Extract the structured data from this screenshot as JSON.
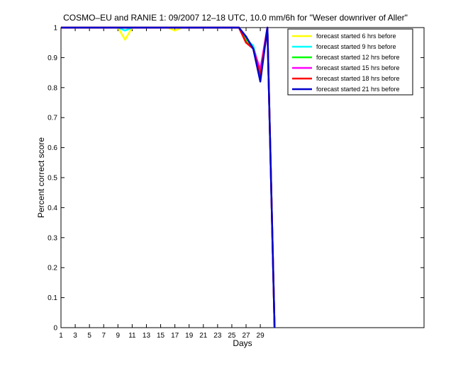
{
  "chart_data": {
    "type": "line",
    "title": "COSMO–EU and RANIE 1: 09/2007 12–18 UTC, 10.0 mm/6h for \"Weser downriver of Aller\"",
    "xlabel": "Days",
    "ylabel": "Percent correct score",
    "xlim": [
      1,
      52
    ],
    "ylim": [
      0,
      1
    ],
    "xticks": [
      1,
      3,
      5,
      7,
      9,
      11,
      13,
      15,
      17,
      19,
      21,
      23,
      25,
      27,
      29
    ],
    "yticks": [
      0,
      0.1,
      0.2,
      0.3,
      0.4,
      0.5,
      0.6,
      0.7,
      0.8,
      0.9,
      1
    ],
    "ytick_labels": [
      "0",
      "0.1",
      "0.2",
      "0.3",
      "0.4",
      "0.5",
      "0.6",
      "0.7",
      "0.8",
      "0.9",
      "1"
    ],
    "legend_position": "top-right",
    "grid": false,
    "series": [
      {
        "name": "forecast started 6 hrs before",
        "color": "#ffff00",
        "x": [
          1,
          2,
          3,
          4,
          5,
          6,
          7,
          8,
          9,
          10,
          11,
          12,
          13,
          14,
          15,
          16,
          17,
          18,
          19,
          20,
          21,
          22,
          23,
          24,
          25,
          26,
          27,
          28,
          29,
          30,
          31
        ],
        "y": [
          1,
          1,
          1,
          1,
          1,
          1,
          1,
          1,
          1,
          0.96,
          1,
          1,
          1,
          1,
          1,
          1,
          0.99,
          1,
          1,
          1,
          1,
          1,
          1,
          1,
          1,
          1,
          0.95,
          0.93,
          0.85,
          1,
          0
        ]
      },
      {
        "name": "forecast started 9 hrs before",
        "color": "#00ffff",
        "x": [
          1,
          2,
          3,
          4,
          5,
          6,
          7,
          8,
          9,
          10,
          11,
          12,
          13,
          14,
          15,
          16,
          17,
          18,
          19,
          20,
          21,
          22,
          23,
          24,
          25,
          26,
          27,
          28,
          29,
          30,
          31
        ],
        "y": [
          1,
          1,
          1,
          1,
          1,
          1,
          1,
          1,
          1,
          0.99,
          1,
          1,
          1,
          1,
          1,
          1,
          1,
          1,
          1,
          1,
          1,
          1,
          1,
          1,
          1,
          1,
          0.96,
          0.94,
          0.85,
          1,
          0
        ]
      },
      {
        "name": "forecast started 12 hrs before",
        "color": "#00ff00",
        "x": [
          1,
          2,
          3,
          4,
          5,
          6,
          7,
          8,
          9,
          10,
          11,
          12,
          13,
          14,
          15,
          16,
          17,
          18,
          19,
          20,
          21,
          22,
          23,
          24,
          25,
          26,
          27,
          28,
          29,
          30,
          31
        ],
        "y": [
          1,
          1,
          1,
          1,
          1,
          1,
          1,
          1,
          1,
          1,
          1,
          1,
          1,
          1,
          1,
          1,
          1,
          1,
          1,
          1,
          1,
          1,
          1,
          1,
          1,
          1,
          0.96,
          0.93,
          0.85,
          1,
          0
        ]
      },
      {
        "name": "forecast started 15 hrs before",
        "color": "#ff00ff",
        "x": [
          1,
          2,
          3,
          4,
          5,
          6,
          7,
          8,
          9,
          10,
          11,
          12,
          13,
          14,
          15,
          16,
          17,
          18,
          19,
          20,
          21,
          22,
          23,
          24,
          25,
          26,
          27,
          28,
          29,
          30,
          31
        ],
        "y": [
          1,
          1,
          1,
          1,
          1,
          1,
          1,
          1,
          1,
          1,
          1,
          1,
          1,
          1,
          1,
          1,
          1,
          1,
          1,
          1,
          1,
          1,
          1,
          1,
          1,
          1,
          0.95,
          0.93,
          0.86,
          1,
          0
        ]
      },
      {
        "name": "forecast started 18 hrs before",
        "color": "#ff0000",
        "x": [
          1,
          2,
          3,
          4,
          5,
          6,
          7,
          8,
          9,
          10,
          11,
          12,
          13,
          14,
          15,
          16,
          17,
          18,
          19,
          20,
          21,
          22,
          23,
          24,
          25,
          26,
          27,
          28,
          29,
          30,
          31
        ],
        "y": [
          1,
          1,
          1,
          1,
          1,
          1,
          1,
          1,
          1,
          1,
          1,
          1,
          1,
          1,
          1,
          1,
          1,
          1,
          1,
          1,
          1,
          1,
          1,
          1,
          1,
          1,
          0.95,
          0.93,
          0.84,
          1,
          0
        ]
      },
      {
        "name": "forecast started 21 hrs before",
        "color": "#0000cc",
        "x": [
          1,
          2,
          3,
          4,
          5,
          6,
          7,
          8,
          9,
          10,
          11,
          12,
          13,
          14,
          15,
          16,
          17,
          18,
          19,
          20,
          21,
          22,
          23,
          24,
          25,
          26,
          27,
          28,
          29,
          30,
          31
        ],
        "y": [
          1,
          1,
          1,
          1,
          1,
          1,
          1,
          1,
          1,
          1,
          1,
          1,
          1,
          1,
          1,
          1,
          1,
          1,
          1,
          1,
          1,
          1,
          1,
          1,
          1,
          1,
          0.97,
          0.93,
          0.82,
          1,
          0
        ]
      }
    ]
  }
}
